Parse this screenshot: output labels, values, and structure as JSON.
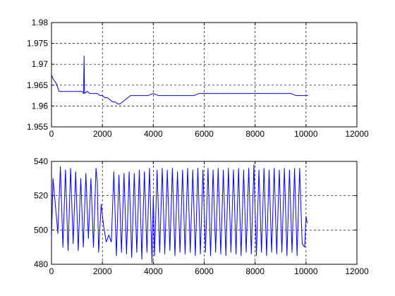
{
  "chart_data": [
    {
      "type": "line",
      "title": "",
      "xlabel": "",
      "ylabel": "",
      "xlim": [
        0,
        12000
      ],
      "ylim": [
        1.955,
        1.98
      ],
      "grid": true,
      "xticks": [
        "0",
        "2000",
        "4000",
        "6000",
        "8000",
        "10000",
        "12000"
      ],
      "yticks": [
        "1.955",
        "1.96",
        "1.965",
        "1.97",
        "1.975",
        "1.98"
      ],
      "color": "#0000ff",
      "series": [
        {
          "x": [
            0,
            60,
            120,
            180,
            240,
            300,
            400,
            500,
            600,
            700,
            800,
            900,
            1000,
            1100,
            1200,
            1260,
            1280,
            1300,
            1400,
            1500,
            1600,
            1700,
            1800,
            1900,
            2000,
            2100,
            2200,
            2300,
            2400,
            2500,
            2600,
            2700,
            2800,
            2900,
            3000,
            3100,
            3200,
            3400,
            3600,
            3800,
            4000,
            4200,
            4400,
            4600,
            4800,
            5000,
            5200,
            5400,
            5600,
            5800,
            6000,
            6200,
            6400,
            6600,
            6800,
            7000,
            7200,
            7400,
            7600,
            7800,
            8000,
            8200,
            8400,
            8600,
            8800,
            9000,
            9200,
            9400,
            9600,
            9800,
            10000,
            10080
          ],
          "y": [
            1.9675,
            1.9665,
            1.966,
            1.9655,
            1.9645,
            1.9635,
            1.9635,
            1.9635,
            1.9635,
            1.9635,
            1.9635,
            1.9635,
            1.9635,
            1.9635,
            1.9635,
            1.963,
            1.972,
            1.963,
            1.9635,
            1.963,
            1.963,
            1.963,
            1.963,
            1.9625,
            1.9625,
            1.962,
            1.962,
            1.9615,
            1.961,
            1.961,
            1.9605,
            1.9605,
            1.961,
            1.9615,
            1.962,
            1.9625,
            1.9625,
            1.9625,
            1.9625,
            1.9625,
            1.963,
            1.9625,
            1.9625,
            1.9625,
            1.9625,
            1.9625,
            1.9625,
            1.9625,
            1.9625,
            1.963,
            1.963,
            1.963,
            1.963,
            1.963,
            1.963,
            1.963,
            1.963,
            1.963,
            1.963,
            1.963,
            1.963,
            1.963,
            1.963,
            1.963,
            1.963,
            1.963,
            1.963,
            1.963,
            1.9625,
            1.9625,
            1.9625,
            1.9625
          ]
        }
      ]
    },
    {
      "type": "line",
      "title": "",
      "xlabel": "",
      "ylabel": "",
      "xlim": [
        0,
        12000
      ],
      "ylim": [
        480,
        540
      ],
      "grid": true,
      "xticks": [
        "0",
        "2000",
        "4000",
        "6000",
        "8000",
        "10000",
        "12000"
      ],
      "yticks": [
        "480",
        "500",
        "520",
        "540"
      ],
      "color": "#0000ff",
      "series": [
        {
          "x": [
            0,
            60,
            150,
            250,
            350,
            450,
            550,
            650,
            750,
            850,
            950,
            1050,
            1150,
            1250,
            1350,
            1450,
            1550,
            1650,
            1750,
            1800,
            1850,
            1950,
            2050,
            2150,
            2250,
            2350,
            2450,
            2550,
            2650,
            2750,
            2850,
            2950,
            3050,
            3150,
            3250,
            3350,
            3450,
            3550,
            3650,
            3750,
            3850,
            3950,
            4000,
            4050,
            4150,
            4250,
            4350,
            4450,
            4550,
            4650,
            4750,
            4850,
            4950,
            5050,
            5150,
            5250,
            5350,
            5450,
            5550,
            5650,
            5750,
            5850,
            5950,
            6050,
            6150,
            6250,
            6350,
            6450,
            6550,
            6650,
            6750,
            6850,
            6950,
            7050,
            7150,
            7250,
            7350,
            7450,
            7550,
            7650,
            7750,
            7850,
            7950,
            8050,
            8150,
            8250,
            8350,
            8450,
            8550,
            8650,
            8750,
            8850,
            8950,
            9050,
            9150,
            9250,
            9350,
            9450,
            9550,
            9650,
            9750,
            9850,
            9950,
            10000,
            10050
          ],
          "y": [
            495,
            530,
            515,
            498,
            537,
            490,
            535,
            488,
            536,
            492,
            534,
            488,
            530,
            490,
            533,
            495,
            530,
            490,
            536,
            528,
            487,
            515,
            502,
            493,
            497,
            493,
            534,
            485,
            532,
            487,
            533,
            486,
            534,
            484,
            533,
            487,
            535,
            483,
            534,
            487,
            536,
            481,
            520,
            485,
            535,
            487,
            536,
            486,
            535,
            488,
            536,
            485,
            534,
            487,
            535,
            486,
            536,
            487,
            535,
            485,
            536,
            486,
            535,
            487,
            536,
            485,
            535,
            487,
            536,
            486,
            535,
            485,
            536,
            487,
            535,
            486,
            536,
            485,
            535,
            487,
            536,
            486,
            538,
            485,
            535,
            487,
            536,
            485,
            535,
            487,
            536,
            486,
            535,
            487,
            536,
            485,
            535,
            487,
            536,
            485,
            536,
            492,
            490,
            508,
            504
          ]
        }
      ]
    }
  ]
}
